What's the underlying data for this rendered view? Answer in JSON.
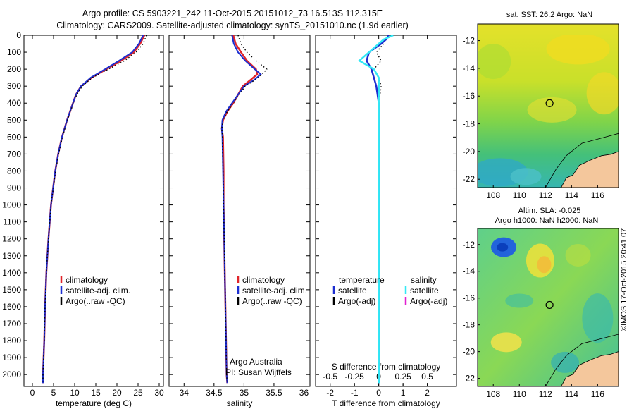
{
  "header": {
    "line1": "Argo profile: CS 5903221_242 11-Oct-2015 20151012_73 16.513S 112.315E",
    "line2": "Climatology: CARS2009. Satellite-adjusted climatology: synTS_20151010.nc (1.9d earlier)"
  },
  "colors": {
    "climatology": "#e0242a",
    "satellite": "#1c2ed1",
    "argo": "#000000",
    "salinity_satellite": "#33e8f5",
    "salinity_argo": "#e020d0"
  },
  "chart_data": [
    {
      "type": "line",
      "name": "temperature-profile",
      "xlabel": "temperature (deg C)",
      "ylabel": "",
      "xlim": [
        -2,
        31
      ],
      "ylim": [
        2070,
        0
      ],
      "xticks": [
        0,
        5,
        10,
        15,
        20,
        25,
        30
      ],
      "yticks": [
        0,
        100,
        200,
        300,
        400,
        500,
        600,
        700,
        800,
        900,
        1000,
        1100,
        1200,
        1300,
        1400,
        1500,
        1600,
        1700,
        1800,
        1900,
        2000
      ],
      "depth": [
        0,
        50,
        100,
        150,
        200,
        250,
        300,
        350,
        400,
        500,
        600,
        700,
        800,
        1000,
        1200,
        1400,
        1600,
        1800,
        2000,
        2050
      ],
      "series": [
        {
          "name": "climatology",
          "values": [
            26.5,
            25.5,
            24,
            21,
            17.5,
            14,
            11.5,
            10.3,
            9.6,
            8.2,
            7,
            6.1,
            5.4,
            4.4,
            3.8,
            3.3,
            3,
            2.8,
            2.5,
            2.5
          ]
        },
        {
          "name": "satellite-adj. clim.",
          "values": [
            26.2,
            25.2,
            23.6,
            20.5,
            17.2,
            13.8,
            11.5,
            10.3,
            9.6,
            8.2,
            7,
            6.1,
            5.4,
            4.4,
            3.8,
            3.3,
            3,
            2.8,
            2.5,
            2.5
          ]
        },
        {
          "name": "Argo(..raw -QC)",
          "values": [
            27,
            26.2,
            24.5,
            21.8,
            18,
            14.2,
            11.8,
            10.5,
            9.7,
            8.3,
            7.1,
            6.2,
            5.5,
            4.4,
            3.8,
            3.3,
            3,
            2.8,
            2.5,
            2.5
          ]
        }
      ],
      "legend": [
        "climatology",
        "satellite-adj. clim.",
        "Argo(..raw -QC)"
      ],
      "legend_position": "bottom-center"
    },
    {
      "type": "line",
      "name": "salinity-profile",
      "xlabel": "salinity",
      "ylabel": "",
      "xlim": [
        33.75,
        36.1
      ],
      "ylim": [
        2070,
        0
      ],
      "xticks": [
        34,
        34.5,
        35,
        35.5,
        36
      ],
      "depth": [
        0,
        50,
        100,
        150,
        200,
        230,
        260,
        300,
        350,
        400,
        450,
        500,
        550,
        600,
        800,
        1000,
        1200,
        1400,
        1600,
        1800,
        2000,
        2050
      ],
      "series": [
        {
          "name": "climatology",
          "values": [
            34.82,
            34.86,
            34.95,
            35.05,
            35.2,
            35.22,
            35.12,
            34.98,
            34.9,
            34.82,
            34.72,
            34.65,
            34.63,
            34.65,
            34.66,
            34.66,
            34.67,
            34.68,
            34.69,
            34.7,
            34.71,
            34.72
          ]
        },
        {
          "name": "satellite-adj. clim.",
          "values": [
            34.8,
            34.83,
            34.9,
            35.02,
            35.18,
            35.28,
            35.18,
            35,
            34.9,
            34.8,
            34.7,
            34.64,
            34.63,
            34.64,
            34.65,
            34.66,
            34.67,
            34.68,
            34.69,
            34.7,
            34.71,
            34.72
          ]
        },
        {
          "name": "Argo(..raw -QC)",
          "values": [
            34.9,
            34.95,
            35.05,
            35.2,
            35.38,
            35.3,
            35.2,
            35.02,
            34.92,
            34.82,
            34.72,
            34.65,
            34.63,
            34.64,
            34.65,
            34.66,
            34.67,
            34.68,
            34.69,
            34.7,
            34.71,
            34.72
          ]
        }
      ],
      "legend": [
        "climatology",
        "satellite-adj. clim.",
        "Argo(..raw -QC)"
      ],
      "legend_position": "bottom-center",
      "annotation": [
        "Argo Australia",
        "PI: Susan Wijffels"
      ]
    },
    {
      "type": "line",
      "name": "difference-profile",
      "xlabel_top": "S difference from climatology",
      "xticks_top": [
        "-0.5",
        "-0.25",
        "0",
        "0.25",
        "0.5"
      ],
      "xlabel": "T difference from climatology",
      "xticks": [
        -2,
        -1,
        0,
        1,
        2
      ],
      "xlim": [
        -2.6,
        3.2
      ],
      "ylim": [
        2070,
        0
      ],
      "depth": [
        0,
        25,
        50,
        100,
        150,
        200,
        250,
        300,
        400,
        500,
        700,
        1000,
        1500,
        2050
      ],
      "series": [
        {
          "name": "temperature satellite",
          "values": [
            0.4,
            0.3,
            0.1,
            -0.4,
            -0.5,
            -0.3,
            -0.2,
            -0.1,
            0,
            0,
            0,
            0,
            0,
            0
          ]
        },
        {
          "name": "salinity satellite",
          "values": [
            0.15,
            0.05,
            0,
            -0.1,
            -0.2,
            -0.05,
            0,
            0,
            0,
            0,
            0,
            0,
            0,
            0
          ]
        },
        {
          "name": "temperature Argo(-adj)",
          "values": [
            0.5,
            0.2,
            0.2,
            -0.1,
            0.1,
            -0.2,
            0,
            0.1,
            0,
            0,
            0,
            0,
            0,
            0
          ]
        }
      ],
      "legend_headers": [
        "temperature",
        "salinity"
      ],
      "legend_temperature": [
        "satellite",
        "Argo(-adj)"
      ],
      "legend_salinity": [
        "satellite",
        "Argo(-adj)"
      ]
    },
    {
      "type": "heatmap",
      "name": "sst-map",
      "title": "sat. SST: 26.2  Argo: NaN",
      "xticks": [
        108,
        110,
        112,
        114,
        116
      ],
      "yticks": [
        -12,
        -14,
        -16,
        -18,
        -20,
        -22
      ],
      "xlim": [
        106.8,
        117.6
      ],
      "ylim": [
        -22.6,
        -10.8
      ],
      "float_position": {
        "lon": 112.315,
        "lat": -16.513
      }
    },
    {
      "type": "heatmap",
      "name": "sla-map",
      "title_line1": "Altim. SLA: -0.025",
      "title_line2": "Argo h1000: NaN h2000: NaN",
      "xticks": [
        108,
        110,
        112,
        114,
        116
      ],
      "yticks": [
        -12,
        -14,
        -16,
        -18,
        -20,
        -22
      ],
      "xlim": [
        106.8,
        117.6
      ],
      "ylim": [
        -22.6,
        -10.8
      ],
      "float_position": {
        "lon": 112.315,
        "lat": -16.513
      }
    }
  ],
  "stamp": "©IMOS 17-Oct-2015 20:41:07"
}
